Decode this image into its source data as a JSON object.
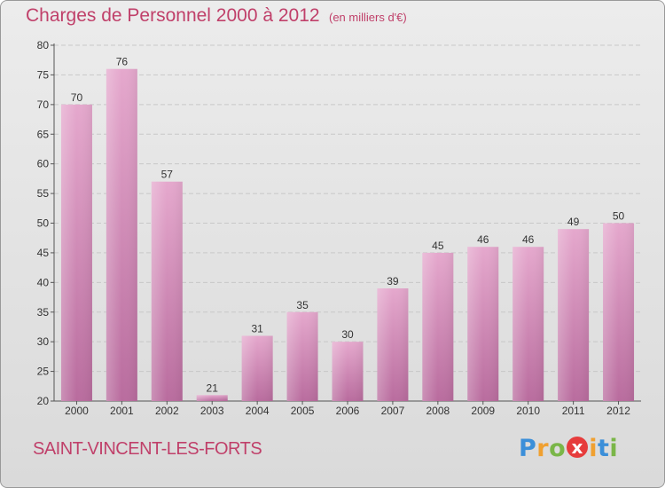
{
  "page": {
    "title": "Charges de Personnel 2000 à 2012",
    "subtitle": "(en milliers d'€)",
    "location": "SAINT-VINCENT-LES-FORTS",
    "brand": {
      "letters": [
        "P",
        "r",
        "o",
        "x",
        "i",
        "t",
        "i"
      ],
      "colors": [
        "#3b8fd9",
        "#f0a030",
        "#7ab648",
        "#e63c3c",
        "#f0a030",
        "#3b8fd9",
        "#7ab648"
      ]
    }
  },
  "colors": {
    "bar_top": "#e5a8cd",
    "bar_bottom": "#b96c9e",
    "text_accent": "#c0406a"
  },
  "chart_data": {
    "type": "bar",
    "title": "Charges de Personnel 2000 à 2012",
    "subtitle": "(en milliers d'€)",
    "xlabel": "",
    "ylabel": "",
    "categories": [
      "2000",
      "2001",
      "2002",
      "2003",
      "2004",
      "2005",
      "2006",
      "2007",
      "2008",
      "2009",
      "2010",
      "2011",
      "2012"
    ],
    "values": [
      70,
      76,
      57,
      21,
      31,
      35,
      30,
      39,
      45,
      46,
      46,
      49,
      50
    ],
    "ylim": [
      20,
      80
    ],
    "yticks": [
      20,
      25,
      30,
      35,
      40,
      45,
      50,
      55,
      60,
      65,
      70,
      75,
      80
    ],
    "grid": true,
    "legend": "none"
  }
}
